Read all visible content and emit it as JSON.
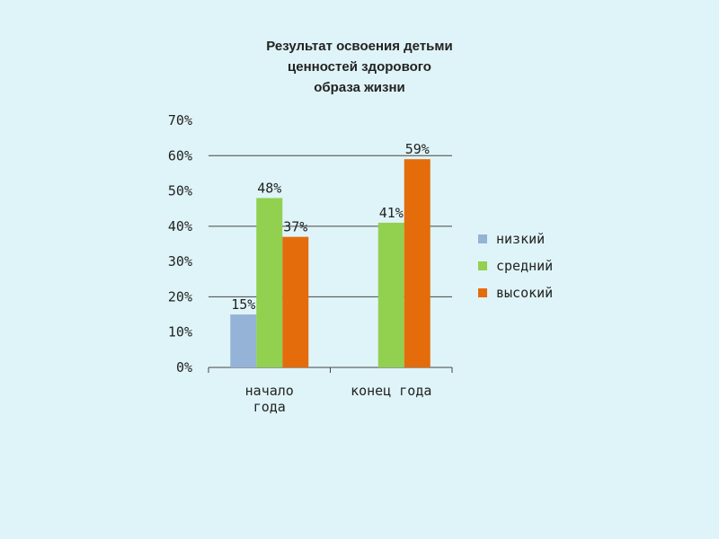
{
  "chart_data": {
    "type": "bar",
    "title_lines": [
      "Результат освоения детьми",
      "ценностей здорового",
      "образа жизни"
    ],
    "categories": [
      [
        "начало",
        "года"
      ],
      [
        "конец года"
      ]
    ],
    "series": [
      {
        "name": "низкий",
        "color": "#95b3d7",
        "values": [
          15,
          null
        ],
        "labels": [
          "15%",
          ""
        ]
      },
      {
        "name": "средний",
        "color": "#92d050",
        "values": [
          48,
          41
        ],
        "labels": [
          "48%",
          "41%"
        ]
      },
      {
        "name": "высокий",
        "color": "#e46c0a",
        "values": [
          37,
          59
        ],
        "labels": [
          "37%",
          "59%"
        ]
      }
    ],
    "ylim": [
      0,
      70
    ],
    "yticks": [
      0,
      10,
      20,
      30,
      40,
      50,
      60,
      70
    ],
    "ytick_labels": [
      "0%",
      "10%",
      "20%",
      "30%",
      "40%",
      "50%",
      "60%",
      "70%"
    ],
    "gridlines": [
      20,
      40,
      60
    ],
    "legend_position": "right"
  }
}
